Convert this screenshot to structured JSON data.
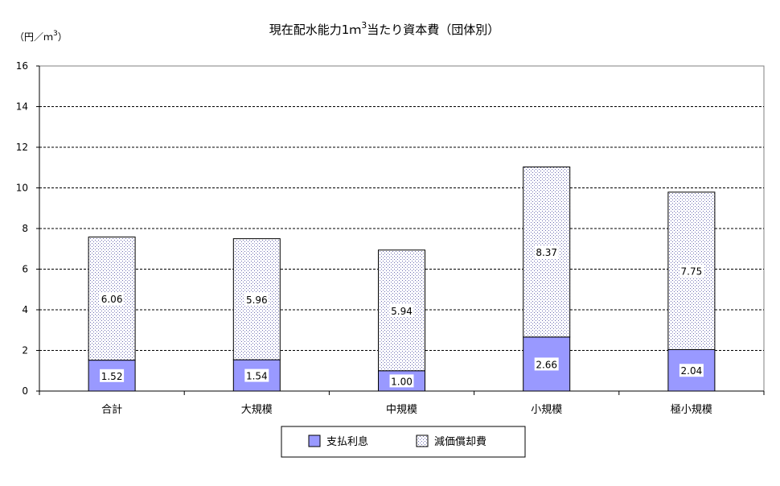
{
  "chart_data": {
    "type": "bar",
    "stacked": true,
    "title": "現在配水能力1ｍ",
    "title_sup": "3",
    "title_suffix": "当たり資本費（団体別）",
    "ylabel": "（円／ｍ",
    "ylabel_sup": "3",
    "ylabel_suffix": "）",
    "xlabel": "",
    "ylim": [
      0,
      16
    ],
    "ytick_step": 2,
    "grid": true,
    "legend_position": "bottom",
    "categories": [
      "合計",
      "大規模",
      "中規模",
      "小規模",
      "極小規模"
    ],
    "series": [
      {
        "name": "支払利息",
        "values": [
          1.52,
          1.54,
          1.0,
          2.66,
          2.04
        ],
        "color": "#9999ff",
        "pattern": "solid"
      },
      {
        "name": "減価償却費",
        "values": [
          6.06,
          5.96,
          5.94,
          8.37,
          7.75
        ],
        "color": "#ffffff",
        "pattern": "dots"
      }
    ],
    "data_labels": [
      [
        "1.52",
        "1.54",
        "1.00",
        "2.66",
        "2.04"
      ],
      [
        "6.06",
        "5.96",
        "5.94",
        "8.37",
        "7.75"
      ]
    ]
  }
}
